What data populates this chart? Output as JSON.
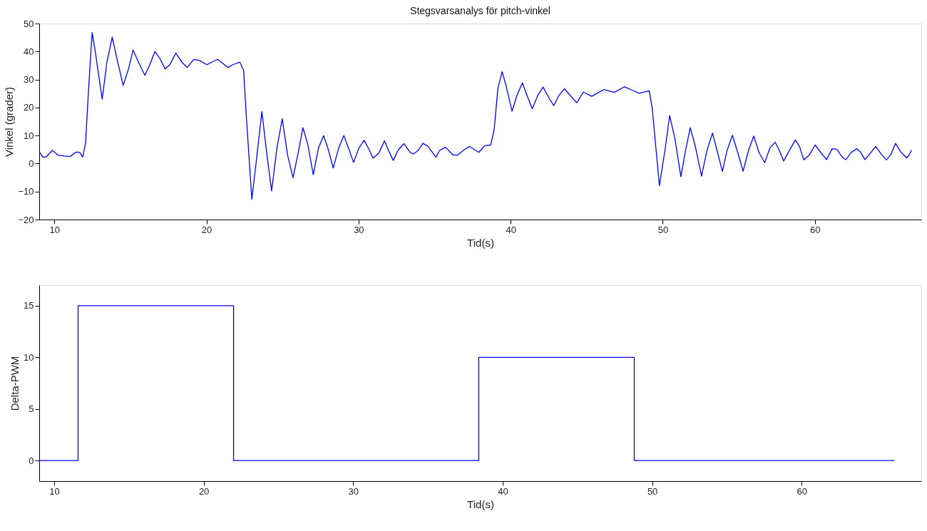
{
  "chart_data": [
    {
      "type": "line",
      "title": "Stegsvarsanalys för pitch-vinkel",
      "xlabel": "Tid(s)",
      "ylabel": "Vinkel (grader)",
      "xlim": [
        9,
        67
      ],
      "xticks": [
        10,
        20,
        30,
        40,
        50,
        60
      ],
      "ylim": [
        -20,
        50
      ],
      "yticks": [
        -20,
        -10,
        0,
        10,
        20,
        30,
        40,
        50
      ],
      "grid": false,
      "series": [
        {
          "color": "#0000ff",
          "x": [
            9.0,
            9.23,
            9.47,
            9.86,
            10.25,
            10.64,
            11.03,
            11.42,
            11.66,
            11.86,
            12.05,
            12.23,
            12.48,
            12.67,
            13.14,
            13.45,
            13.8,
            14.16,
            14.52,
            14.86,
            15.17,
            15.56,
            15.95,
            16.27,
            16.61,
            16.89,
            17.28,
            17.59,
            17.98,
            18.38,
            18.73,
            19.16,
            19.55,
            20.02,
            20.72,
            21.42,
            21.73,
            22.2,
            22.44,
            22.59,
            22.98,
            23.3,
            23.64,
            23.92,
            24.28,
            24.63,
            24.98,
            25.33,
            25.69,
            26.03,
            26.34,
            26.66,
            27.02,
            27.36,
            27.7,
            27.98,
            28.33,
            28.69,
            29.03,
            29.39,
            29.67,
            30.02,
            30.36,
            30.72,
            30.95,
            31.34,
            31.7,
            31.97,
            32.28,
            32.59,
            32.98,
            33.38,
            33.61,
            33.92,
            34.23,
            34.55,
            35.09,
            35.33,
            35.72,
            36.19,
            36.5,
            36.89,
            37.28,
            37.91,
            38.3,
            38.69,
            38.92,
            39.16,
            39.44,
            39.7,
            40.09,
            40.41,
            40.77,
            41.11,
            41.42,
            41.78,
            42.13,
            42.52,
            42.83,
            43.17,
            43.53,
            43.92,
            44.34,
            44.78,
            45.33,
            46.11,
            46.81,
            47.48,
            47.98,
            48.45,
            49.11,
            49.31,
            49.78,
            50.17,
            50.45,
            50.8,
            51.19,
            51.5,
            51.81,
            52.13,
            52.55,
            52.91,
            53.27,
            53.61,
            53.92,
            54.23,
            54.58,
            54.94,
            55.28,
            55.64,
            55.98,
            56.34,
            56.7,
            57.05,
            57.39,
            57.67,
            57.95,
            58.3,
            58.72,
            59.0,
            59.27,
            59.63,
            60.02,
            60.41,
            60.77,
            61.14,
            61.45,
            61.81,
            62.05,
            62.36,
            62.75,
            62.98,
            63.3,
            63.61,
            64.0,
            64.36,
            64.7,
            65.02,
            65.3,
            65.64,
            66.03,
            66.19,
            66.36
          ],
          "values": [
            4.3,
            2.3,
            2.4,
            4.7,
            3.0,
            2.7,
            2.5,
            4.1,
            4.0,
            2.3,
            7.3,
            25.2,
            46.8,
            40.5,
            23.0,
            36.2,
            45.1,
            36.2,
            27.9,
            33.6,
            40.5,
            35.8,
            31.5,
            35.3,
            40.0,
            37.9,
            33.8,
            35.3,
            39.4,
            36.2,
            34.3,
            37.2,
            36.8,
            35.3,
            37.2,
            34.3,
            35.3,
            36.2,
            33.2,
            19.2,
            -12.8,
            2.1,
            18.6,
            5.5,
            -9.8,
            5.5,
            16.0,
            3.0,
            -5.1,
            3.9,
            12.8,
            6.8,
            -4.0,
            5.5,
            10.0,
            5.5,
            -1.6,
            5.5,
            10.0,
            4.7,
            0.4,
            5.5,
            8.3,
            4.7,
            1.9,
            3.8,
            8.1,
            4.7,
            1.1,
            4.7,
            7.1,
            4.0,
            3.4,
            4.7,
            7.2,
            6.2,
            2.3,
            4.7,
            5.8,
            3.1,
            3.0,
            4.7,
            6.1,
            4.0,
            6.4,
            6.6,
            12.4,
            26.8,
            32.8,
            27.7,
            18.7,
            24.3,
            28.8,
            23.8,
            19.6,
            24.3,
            27.3,
            23.4,
            20.7,
            24.3,
            26.7,
            24.3,
            21.7,
            25.5,
            24.0,
            26.4,
            25.4,
            27.4,
            26.2,
            25.1,
            26.0,
            19.6,
            -7.9,
            5.6,
            17.1,
            8.9,
            -4.7,
            4.7,
            12.8,
            6.4,
            -4.5,
            4.7,
            10.9,
            3.8,
            -2.8,
            4.7,
            10.1,
            3.8,
            -2.8,
            4.7,
            9.8,
            3.8,
            0.3,
            5.6,
            7.6,
            4.7,
            0.9,
            4.4,
            8.4,
            6.0,
            1.3,
            3.0,
            6.6,
            3.8,
            1.4,
            5.3,
            5.1,
            2.2,
            1.4,
            3.8,
            5.3,
            4.2,
            1.4,
            3.4,
            6.1,
            3.4,
            1.3,
            3.4,
            7.2,
            4.2,
            2.0,
            2.9,
            4.8
          ]
        }
      ]
    },
    {
      "type": "step",
      "xlabel": "Tid(s)",
      "ylabel": "Delta-PWM",
      "xlim": [
        9,
        68
      ],
      "xticks": [
        10,
        20,
        30,
        40,
        50,
        60
      ],
      "ylim": [
        -2,
        17
      ],
      "yticks": [
        0,
        5,
        10,
        15
      ],
      "grid": false,
      "series": [
        {
          "color": "#0000ff",
          "x": [
            9,
            11.6,
            22.0,
            38.4,
            48.8,
            66.2
          ],
          "values": [
            0,
            15,
            0,
            10,
            0,
            0
          ]
        }
      ]
    }
  ]
}
